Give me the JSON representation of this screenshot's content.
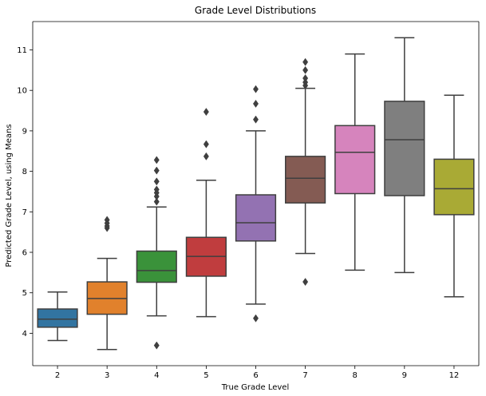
{
  "chart_data": {
    "type": "box",
    "title": "Grade Level Distributions",
    "xlabel": "True Grade Level",
    "ylabel": "Predicted Grade Level, using Means",
    "ylim": [
      3.2,
      11.7
    ],
    "yticks": [
      4,
      5,
      6,
      7,
      8,
      9,
      10,
      11
    ],
    "grid": false,
    "legend": "none",
    "categories": [
      "2",
      "3",
      "4",
      "5",
      "6",
      "7",
      "8",
      "9",
      "12"
    ],
    "series": [
      {
        "category": "2",
        "color": "#3274a1",
        "whisker_low": 3.82,
        "q1": 4.15,
        "median": 4.35,
        "q3": 4.6,
        "whisker_high": 5.02,
        "outliers": []
      },
      {
        "category": "3",
        "color": "#e1812c",
        "whisker_low": 3.6,
        "q1": 4.47,
        "median": 4.86,
        "q3": 5.27,
        "whisker_high": 5.85,
        "outliers": [
          6.6,
          6.65,
          6.72,
          6.8
        ]
      },
      {
        "category": "4",
        "color": "#3a923a",
        "whisker_low": 4.43,
        "q1": 5.26,
        "median": 5.55,
        "q3": 6.03,
        "whisker_high": 7.12,
        "outliers": [
          3.7,
          7.25,
          7.38,
          7.47,
          7.55,
          7.75,
          8.02,
          8.28
        ]
      },
      {
        "category": "5",
        "color": "#c03d3e",
        "whisker_low": 4.41,
        "q1": 5.41,
        "median": 5.9,
        "q3": 6.37,
        "whisker_high": 7.78,
        "outliers": [
          8.37,
          8.67,
          9.47
        ]
      },
      {
        "category": "6",
        "color": "#9372b2",
        "whisker_low": 4.72,
        "q1": 6.28,
        "median": 6.73,
        "q3": 7.42,
        "whisker_high": 9.0,
        "outliers": [
          4.37,
          9.28,
          9.67,
          10.03
        ]
      },
      {
        "category": "7",
        "color": "#845b53",
        "whisker_low": 5.97,
        "q1": 7.22,
        "median": 7.83,
        "q3": 8.37,
        "whisker_high": 10.05,
        "outliers": [
          5.27,
          10.12,
          10.2,
          10.3,
          10.5,
          10.7
        ]
      },
      {
        "category": "8",
        "color": "#d684bd",
        "whisker_low": 5.56,
        "q1": 7.45,
        "median": 8.47,
        "q3": 9.13,
        "whisker_high": 10.9,
        "outliers": []
      },
      {
        "category": "9",
        "color": "#7f7f7f",
        "whisker_low": 5.5,
        "q1": 7.4,
        "median": 8.78,
        "q3": 9.73,
        "whisker_high": 11.3,
        "outliers": []
      },
      {
        "category": "12",
        "color": "#a9aa35",
        "whisker_low": 4.9,
        "q1": 6.93,
        "median": 7.57,
        "q3": 8.3,
        "whisker_high": 9.88,
        "outliers": []
      }
    ]
  }
}
